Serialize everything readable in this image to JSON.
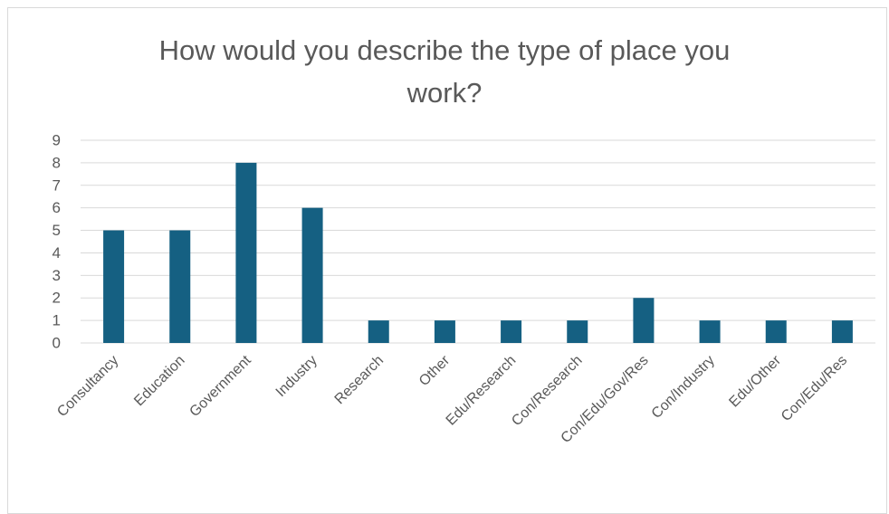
{
  "chart_title_lines": [
    "How would you describe the type of place you",
    "work?"
  ],
  "colors": {
    "bar": "#156082",
    "gridline": "#d9d9d9",
    "axis_text": "#595959",
    "title_text": "#595959"
  },
  "chart_data": {
    "type": "bar",
    "title": "How would you describe the type of place you work?",
    "xlabel": "",
    "ylabel": "",
    "categories": [
      "Consultancy",
      "Education",
      "Government",
      "Industry",
      "Research",
      "Other",
      "Edu/Research",
      "Con/Research",
      "Con/Edu/Gov/Res",
      "Con/Industry",
      "Edu/Other",
      "Con/Edu/Res"
    ],
    "values": [
      5,
      5,
      8,
      6,
      1,
      1,
      1,
      1,
      2,
      1,
      1,
      1
    ],
    "ylim": [
      0,
      9
    ],
    "yticks": [
      0,
      1,
      2,
      3,
      4,
      5,
      6,
      7,
      8,
      9
    ],
    "grid": true,
    "legend": "none"
  }
}
